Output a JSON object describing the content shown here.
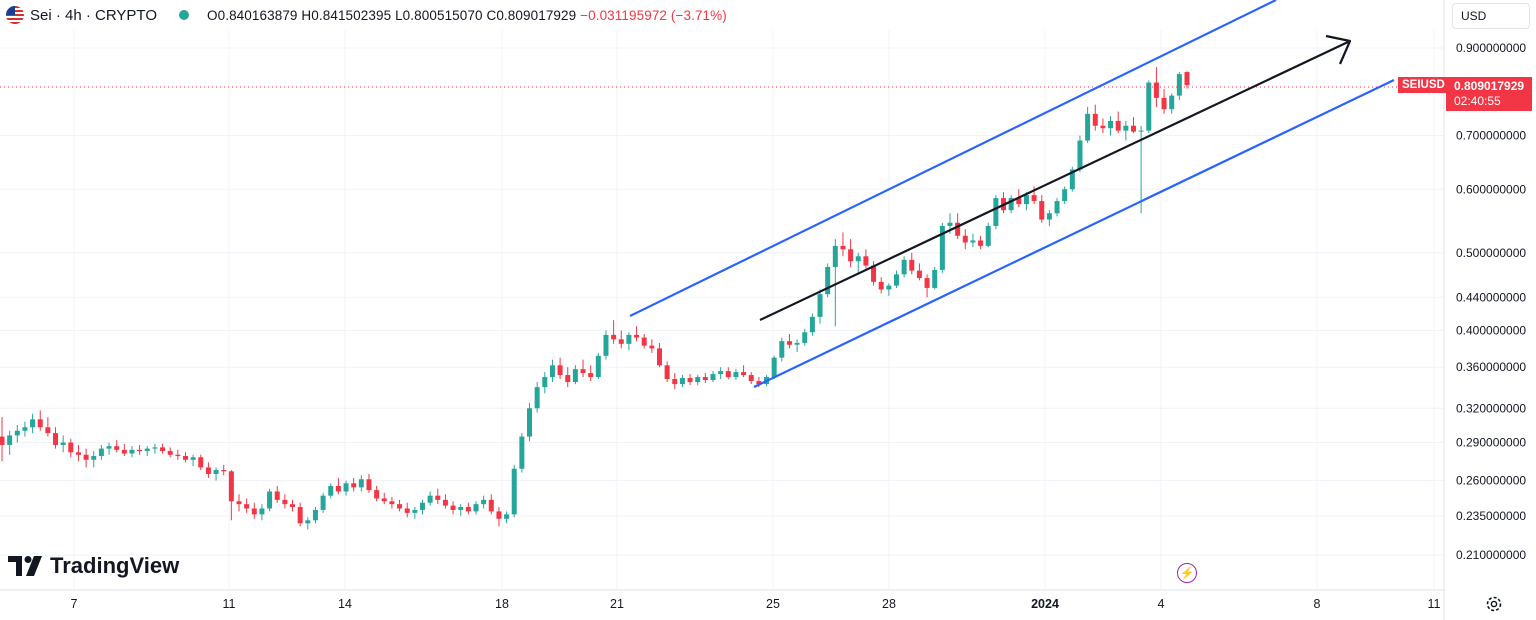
{
  "header": {
    "symbol": "Sei · 4h · CRYPTO",
    "open_label": "O",
    "open": "0.840163879",
    "high_label": "H",
    "high": "0.841502395",
    "low_label": "L",
    "low": "0.800515070",
    "close_label": "C",
    "close": "0.809017929",
    "change": "−0.031195972 (−3.71%)",
    "change_color": "#f23645",
    "status_color": "#26a69a"
  },
  "currency": {
    "label": "USD",
    "icon": "chevron-down-icon"
  },
  "price_tag": {
    "symbol": "SEIUSD",
    "price": "0.809017929",
    "countdown": "02:40:55",
    "color": "#f23645"
  },
  "watermark": {
    "text": "TradingView"
  },
  "icons": {
    "alert": "bolt-icon",
    "settings": "gear-icon",
    "flag": "us-flag-icon"
  },
  "colors": {
    "up": "#26a69a",
    "down": "#f23645",
    "channel": "#2962ff",
    "trend_arrow": "#131722",
    "grid": "#f0f3fa"
  },
  "chart_data": {
    "type": "candlestick",
    "y_scale": "log",
    "y_ticks": [
      "0.900000000",
      "0.700000000",
      "0.600000000",
      "0.500000000",
      "0.440000000",
      "0.400000000",
      "0.360000000",
      "0.320000000",
      "0.290000000",
      "0.260000000",
      "0.235000000",
      "0.210000000"
    ],
    "x_ticks": [
      "7",
      "11",
      "14",
      "18",
      "21",
      "25",
      "28",
      "2024",
      "4",
      "8",
      "11"
    ],
    "ylim": [
      0.2,
      0.98
    ],
    "candles": [
      [
        0.295,
        0.312,
        0.275,
        0.288
      ],
      [
        0.288,
        0.3,
        0.28,
        0.296
      ],
      [
        0.296,
        0.305,
        0.29,
        0.3
      ],
      [
        0.3,
        0.308,
        0.295,
        0.303
      ],
      [
        0.303,
        0.315,
        0.298,
        0.31
      ],
      [
        0.31,
        0.318,
        0.3,
        0.303
      ],
      [
        0.303,
        0.312,
        0.295,
        0.298
      ],
      [
        0.298,
        0.303,
        0.285,
        0.288
      ],
      [
        0.288,
        0.296,
        0.282,
        0.29
      ],
      [
        0.29,
        0.293,
        0.278,
        0.282
      ],
      [
        0.282,
        0.288,
        0.275,
        0.28
      ],
      [
        0.28,
        0.285,
        0.27,
        0.276
      ],
      [
        0.276,
        0.283,
        0.27,
        0.279
      ],
      [
        0.279,
        0.288,
        0.276,
        0.285
      ],
      [
        0.285,
        0.29,
        0.28,
        0.287
      ],
      [
        0.287,
        0.292,
        0.282,
        0.284
      ],
      [
        0.284,
        0.289,
        0.279,
        0.281
      ],
      [
        0.281,
        0.287,
        0.278,
        0.284
      ],
      [
        0.284,
        0.288,
        0.28,
        0.283
      ],
      [
        0.283,
        0.287,
        0.279,
        0.285
      ],
      [
        0.285,
        0.289,
        0.281,
        0.286
      ],
      [
        0.286,
        0.289,
        0.281,
        0.283
      ],
      [
        0.283,
        0.286,
        0.278,
        0.28
      ],
      [
        0.28,
        0.284,
        0.276,
        0.279
      ],
      [
        0.279,
        0.282,
        0.274,
        0.276
      ],
      [
        0.276,
        0.28,
        0.271,
        0.278
      ],
      [
        0.278,
        0.28,
        0.268,
        0.27
      ],
      [
        0.27,
        0.274,
        0.262,
        0.265
      ],
      [
        0.265,
        0.27,
        0.26,
        0.268
      ],
      [
        0.268,
        0.272,
        0.264,
        0.267
      ],
      [
        0.267,
        0.268,
        0.232,
        0.245
      ],
      [
        0.245,
        0.25,
        0.238,
        0.243
      ],
      [
        0.243,
        0.247,
        0.237,
        0.24
      ],
      [
        0.24,
        0.244,
        0.233,
        0.236
      ],
      [
        0.236,
        0.243,
        0.232,
        0.24
      ],
      [
        0.24,
        0.254,
        0.238,
        0.252
      ],
      [
        0.252,
        0.256,
        0.244,
        0.246
      ],
      [
        0.246,
        0.25,
        0.24,
        0.243
      ],
      [
        0.243,
        0.246,
        0.238,
        0.241
      ],
      [
        0.241,
        0.244,
        0.228,
        0.23
      ],
      [
        0.23,
        0.234,
        0.226,
        0.232
      ],
      [
        0.232,
        0.241,
        0.23,
        0.239
      ],
      [
        0.239,
        0.251,
        0.237,
        0.249
      ],
      [
        0.249,
        0.258,
        0.247,
        0.256
      ],
      [
        0.256,
        0.262,
        0.25,
        0.252
      ],
      [
        0.252,
        0.26,
        0.249,
        0.258
      ],
      [
        0.258,
        0.262,
        0.252,
        0.255
      ],
      [
        0.255,
        0.264,
        0.252,
        0.261
      ],
      [
        0.261,
        0.265,
        0.251,
        0.253
      ],
      [
        0.253,
        0.256,
        0.245,
        0.247
      ],
      [
        0.247,
        0.251,
        0.243,
        0.245
      ],
      [
        0.245,
        0.248,
        0.24,
        0.243
      ],
      [
        0.243,
        0.246,
        0.238,
        0.24
      ],
      [
        0.24,
        0.244,
        0.234,
        0.237
      ],
      [
        0.237,
        0.241,
        0.233,
        0.239
      ],
      [
        0.239,
        0.246,
        0.236,
        0.244
      ],
      [
        0.244,
        0.252,
        0.242,
        0.249
      ],
      [
        0.249,
        0.254,
        0.243,
        0.246
      ],
      [
        0.246,
        0.25,
        0.24,
        0.242
      ],
      [
        0.242,
        0.245,
        0.236,
        0.239
      ],
      [
        0.239,
        0.243,
        0.235,
        0.241
      ],
      [
        0.241,
        0.244,
        0.236,
        0.238
      ],
      [
        0.238,
        0.245,
        0.236,
        0.243
      ],
      [
        0.243,
        0.249,
        0.24,
        0.246
      ],
      [
        0.246,
        0.25,
        0.236,
        0.238
      ],
      [
        0.238,
        0.241,
        0.228,
        0.233
      ],
      [
        0.233,
        0.238,
        0.23,
        0.236
      ],
      [
        0.236,
        0.272,
        0.234,
        0.269
      ],
      [
        0.269,
        0.298,
        0.266,
        0.295
      ],
      [
        0.295,
        0.325,
        0.291,
        0.32
      ],
      [
        0.32,
        0.345,
        0.316,
        0.34
      ],
      [
        0.34,
        0.355,
        0.334,
        0.35
      ],
      [
        0.35,
        0.368,
        0.345,
        0.362
      ],
      [
        0.362,
        0.37,
        0.348,
        0.352
      ],
      [
        0.352,
        0.36,
        0.34,
        0.345
      ],
      [
        0.345,
        0.362,
        0.343,
        0.358
      ],
      [
        0.358,
        0.368,
        0.35,
        0.354
      ],
      [
        0.354,
        0.362,
        0.346,
        0.35
      ],
      [
        0.35,
        0.375,
        0.348,
        0.372
      ],
      [
        0.372,
        0.4,
        0.368,
        0.395
      ],
      [
        0.395,
        0.412,
        0.385,
        0.39
      ],
      [
        0.39,
        0.4,
        0.38,
        0.385
      ],
      [
        0.385,
        0.398,
        0.378,
        0.395
      ],
      [
        0.395,
        0.405,
        0.388,
        0.392
      ],
      [
        0.392,
        0.396,
        0.38,
        0.383
      ],
      [
        0.383,
        0.39,
        0.375,
        0.38
      ],
      [
        0.38,
        0.386,
        0.36,
        0.362
      ],
      [
        0.362,
        0.366,
        0.345,
        0.348
      ],
      [
        0.348,
        0.354,
        0.338,
        0.343
      ],
      [
        0.343,
        0.352,
        0.34,
        0.349
      ],
      [
        0.349,
        0.353,
        0.342,
        0.345
      ],
      [
        0.345,
        0.352,
        0.342,
        0.35
      ],
      [
        0.35,
        0.354,
        0.344,
        0.347
      ],
      [
        0.347,
        0.356,
        0.345,
        0.353
      ],
      [
        0.353,
        0.36,
        0.348,
        0.356
      ],
      [
        0.356,
        0.36,
        0.348,
        0.35
      ],
      [
        0.35,
        0.358,
        0.347,
        0.355
      ],
      [
        0.355,
        0.362,
        0.35,
        0.352
      ],
      [
        0.352,
        0.355,
        0.343,
        0.346
      ],
      [
        0.346,
        0.35,
        0.34,
        0.343
      ],
      [
        0.343,
        0.352,
        0.341,
        0.35
      ],
      [
        0.35,
        0.372,
        0.348,
        0.37
      ],
      [
        0.37,
        0.392,
        0.366,
        0.388
      ],
      [
        0.388,
        0.396,
        0.38,
        0.384
      ],
      [
        0.384,
        0.39,
        0.376,
        0.386
      ],
      [
        0.386,
        0.402,
        0.383,
        0.398
      ],
      [
        0.398,
        0.42,
        0.394,
        0.416
      ],
      [
        0.416,
        0.45,
        0.408,
        0.444
      ],
      [
        0.444,
        0.485,
        0.44,
        0.48
      ],
      [
        0.48,
        0.52,
        0.405,
        0.51
      ],
      [
        0.51,
        0.53,
        0.495,
        0.505
      ],
      [
        0.505,
        0.52,
        0.48,
        0.488
      ],
      [
        0.488,
        0.5,
        0.47,
        0.495
      ],
      [
        0.495,
        0.505,
        0.478,
        0.482
      ],
      [
        0.482,
        0.488,
        0.455,
        0.46
      ],
      [
        0.46,
        0.466,
        0.445,
        0.45
      ],
      [
        0.45,
        0.458,
        0.442,
        0.455
      ],
      [
        0.455,
        0.475,
        0.452,
        0.47
      ],
      [
        0.47,
        0.495,
        0.466,
        0.49
      ],
      [
        0.49,
        0.5,
        0.47,
        0.475
      ],
      [
        0.475,
        0.485,
        0.462,
        0.465
      ],
      [
        0.465,
        0.47,
        0.44,
        0.452
      ],
      [
        0.452,
        0.48,
        0.45,
        0.476
      ],
      [
        0.476,
        0.545,
        0.472,
        0.54
      ],
      [
        0.54,
        0.56,
        0.528,
        0.545
      ],
      [
        0.545,
        0.56,
        0.52,
        0.525
      ],
      [
        0.525,
        0.535,
        0.505,
        0.515
      ],
      [
        0.515,
        0.528,
        0.508,
        0.518
      ],
      [
        0.518,
        0.525,
        0.505,
        0.51
      ],
      [
        0.51,
        0.545,
        0.508,
        0.54
      ],
      [
        0.54,
        0.59,
        0.535,
        0.585
      ],
      [
        0.585,
        0.595,
        0.56,
        0.565
      ],
      [
        0.565,
        0.59,
        0.56,
        0.585
      ],
      [
        0.585,
        0.6,
        0.57,
        0.575
      ],
      [
        0.575,
        0.595,
        0.565,
        0.59
      ],
      [
        0.59,
        0.605,
        0.575,
        0.58
      ],
      [
        0.58,
        0.59,
        0.545,
        0.55
      ],
      [
        0.55,
        0.565,
        0.54,
        0.56
      ],
      [
        0.56,
        0.585,
        0.555,
        0.58
      ],
      [
        0.58,
        0.605,
        0.575,
        0.6
      ],
      [
        0.6,
        0.64,
        0.596,
        0.635
      ],
      [
        0.635,
        0.7,
        0.63,
        0.69
      ],
      [
        0.69,
        0.76,
        0.685,
        0.745
      ],
      [
        0.745,
        0.765,
        0.71,
        0.72
      ],
      [
        0.72,
        0.735,
        0.705,
        0.715
      ],
      [
        0.715,
        0.74,
        0.7,
        0.73
      ],
      [
        0.73,
        0.75,
        0.705,
        0.71
      ],
      [
        0.71,
        0.73,
        0.69,
        0.72
      ],
      [
        0.72,
        0.738,
        0.705,
        0.708
      ],
      [
        0.708,
        0.72,
        0.56,
        0.71
      ],
      [
        0.71,
        0.82,
        0.705,
        0.815
      ],
      [
        0.815,
        0.852,
        0.76,
        0.78
      ],
      [
        0.78,
        0.8,
        0.745,
        0.755
      ],
      [
        0.755,
        0.79,
        0.745,
        0.785
      ],
      [
        0.785,
        0.84,
        0.775,
        0.835
      ],
      [
        0.84,
        0.842,
        0.801,
        0.809
      ]
    ]
  }
}
